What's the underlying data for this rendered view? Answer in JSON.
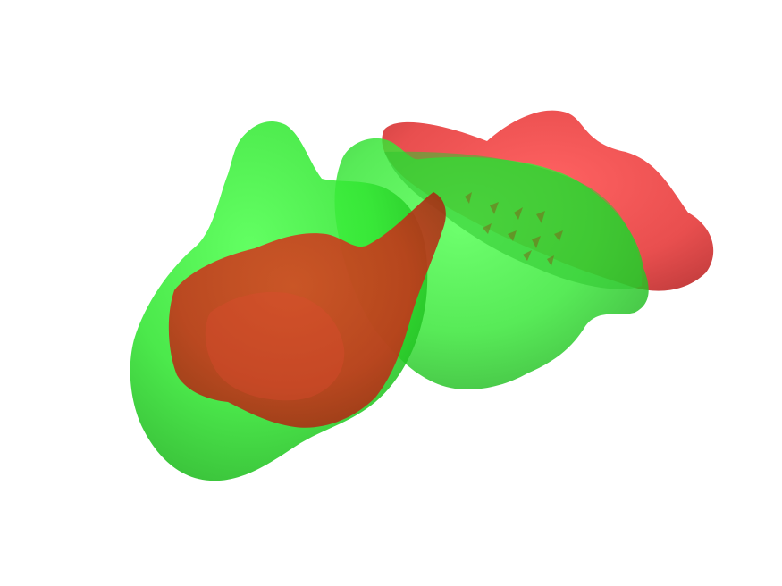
{
  "scene": {
    "background": "#ffffff",
    "colors": {
      "green": "#33e633",
      "green_dark": "#1fb81f",
      "red": "#e63333",
      "red_dark": "#b82a12"
    },
    "objects": [
      {
        "name": "left-green-lobe",
        "color": "green"
      },
      {
        "name": "right-green-lobe",
        "color": "green"
      },
      {
        "name": "left-red-lobe",
        "color": "red"
      },
      {
        "name": "right-red-lobe",
        "color": "red"
      }
    ]
  }
}
